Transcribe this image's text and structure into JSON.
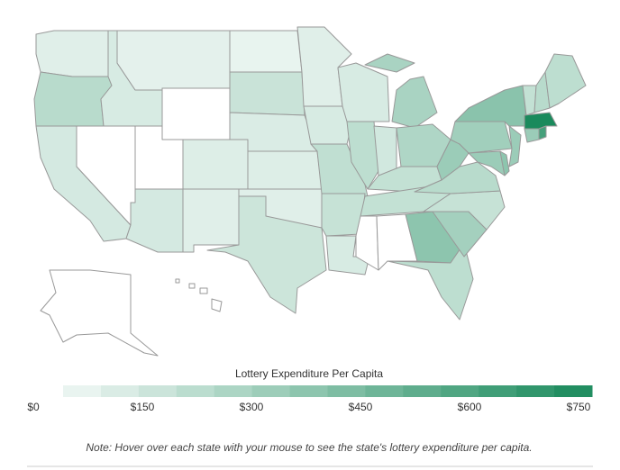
{
  "chart_data": {
    "type": "choropleth",
    "legend_title": "Lottery Expenditure Per Capita",
    "values": [
      60,
      200,
      100,
      null,
      90,
      45,
      null,
      null,
      100,
      70,
      60,
      30,
      140,
      80,
      70,
      60,
      130,
      60,
      90,
      170,
      150,
      90,
      90,
      180,
      250,
      110,
      230,
      160,
      160,
      null,
      null,
      350,
      180,
      270,
      150,
      200,
      300,
      300,
      350,
      280,
      300,
      360,
      160,
      200,
      180,
      750,
      300,
      600,
      null,
      null
    ],
    "colorlim": [
      0,
      750
    ],
    "ticks": [
      {
        "value": 0,
        "label": "$0"
      },
      {
        "value": 150,
        "label": "$150"
      },
      {
        "value": 300,
        "label": "$300"
      },
      {
        "value": 450,
        "label": "$450"
      },
      {
        "value": 600,
        "label": "$600"
      },
      {
        "value": 750,
        "label": "$750"
      }
    ],
    "colors": [
      "#f1f8f5",
      "#1a8a5c"
    ],
    "legend_steps": 14,
    "note": "Note: Hover over each state with your mouse to see the state's lottery expenditure per capita."
  }
}
